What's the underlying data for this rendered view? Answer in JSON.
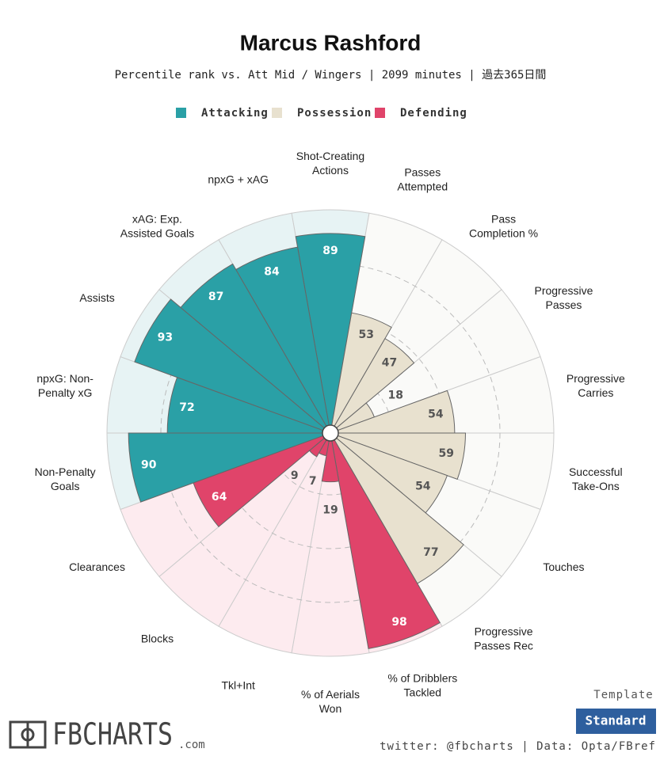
{
  "chart_data": {
    "type": "polar_bar",
    "title": "Marcus Rashford",
    "subtitle": "Percentile rank vs. Att Mid / Wingers | 2099 minutes | 過去365日間",
    "groups": [
      {
        "name": "Attacking",
        "color": "#2aa0a6",
        "background": "#e7f3f4"
      },
      {
        "name": "Possession",
        "color": "#e8e1cf",
        "background": "#fafaf8"
      },
      {
        "name": "Defending",
        "color": "#e0446a",
        "background": "#fdebef"
      }
    ],
    "categories": [
      [
        "Shot-Creating",
        "Actions"
      ],
      [
        "Passes",
        "Attempted"
      ],
      [
        "Pass",
        "Completion %"
      ],
      [
        "Progressive",
        "Passes"
      ],
      [
        "Progressive",
        "Carries"
      ],
      [
        "Successful",
        "Take-Ons"
      ],
      [
        "Touches"
      ],
      [
        "Progressive",
        "Passes Rec"
      ],
      [
        "% of Dribblers",
        "Tackled"
      ],
      [
        "% of Aerials",
        "Won"
      ],
      [
        "Tkl+Int"
      ],
      [
        "Blocks"
      ],
      [
        "Clearances"
      ],
      [
        "Non-Penalty",
        "Goals"
      ],
      [
        "npxG: Non-",
        "Penalty xG"
      ],
      [
        "Assists"
      ],
      [
        "xAG: Exp.",
        "Assisted Goals"
      ],
      [
        "npxG + xAG"
      ]
    ],
    "category_group": [
      0,
      1,
      1,
      1,
      1,
      1,
      1,
      1,
      2,
      2,
      2,
      2,
      2,
      0,
      0,
      0,
      0,
      0
    ],
    "values": [
      89,
      53,
      47,
      18,
      54,
      59,
      54,
      77,
      98,
      19,
      7,
      9,
      64,
      90,
      72,
      93,
      87,
      84
    ],
    "rlim": [
      0,
      100
    ],
    "rticks": [
      25,
      50,
      75
    ],
    "template_label": "Template",
    "template_button": "Standard",
    "credit": "twitter: @fbcharts | Data: Opta/FBref",
    "logo": {
      "text": "FBCHARTS",
      "suffix": ".com"
    }
  }
}
